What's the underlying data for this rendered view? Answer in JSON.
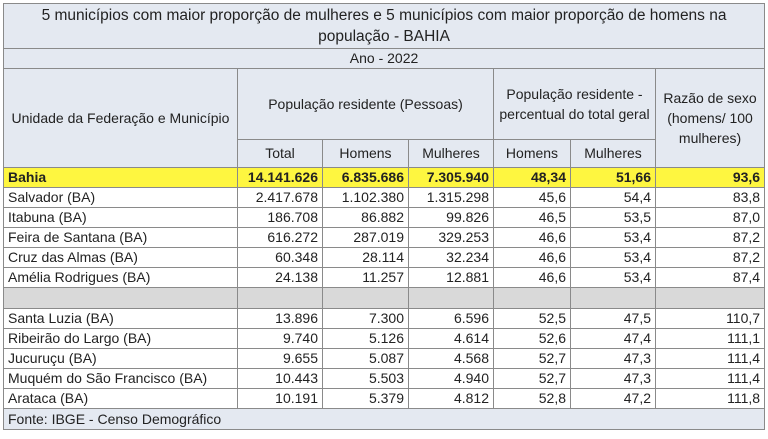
{
  "title": "5 municípios com maior proporção de mulheres e 5 municípios com maior proporção de homens na população - BAHIA",
  "year_label": "Ano - 2022",
  "headers": {
    "unit": "Unidade da Federação e Município",
    "pop_res": "População residente (Pessoas)",
    "pop_pct": "População residente - percentual do total geral",
    "ratio": "Razão de sexo (homens/ 100 mulheres)",
    "total": "Total",
    "homens": "Homens",
    "mulheres": "Mulheres",
    "homens_pct": "Homens",
    "mulheres_pct": "Mulheres"
  },
  "state_row": [
    "Bahia",
    "14.141.626",
    "6.835.686",
    "7.305.940",
    "48,34",
    "51,66",
    "93,6"
  ],
  "group_men": [
    [
      "Salvador (BA)",
      "2.417.678",
      "1.102.380",
      "1.315.298",
      "45,6",
      "54,4",
      "83,8"
    ],
    [
      "Itabuna (BA)",
      "186.708",
      "86.882",
      "99.826",
      "46,5",
      "53,5",
      "87,0"
    ],
    [
      "Feira de Santana (BA)",
      "616.272",
      "287.019",
      "329.253",
      "46,6",
      "53,4",
      "87,2"
    ],
    [
      "Cruz das Almas (BA)",
      "60.348",
      "28.114",
      "32.234",
      "46,6",
      "53,4",
      "87,2"
    ],
    [
      "Amélia Rodrigues (BA)",
      "24.138",
      "11.257",
      "12.881",
      "46,6",
      "53,4",
      "87,4"
    ]
  ],
  "group_women": [
    [
      "Santa Luzia (BA)",
      "13.896",
      "7.300",
      "6.596",
      "52,5",
      "47,5",
      "110,7"
    ],
    [
      "Ribeirão do Largo (BA)",
      "9.740",
      "5.126",
      "4.614",
      "52,6",
      "47,4",
      "111,1"
    ],
    [
      "Jucuruçu (BA)",
      "9.655",
      "5.087",
      "4.568",
      "52,7",
      "47,3",
      "111,4"
    ],
    [
      "Muquém do São Francisco (BA)",
      "10.443",
      "5.503",
      "4.940",
      "52,7",
      "47,3",
      "111,4"
    ],
    [
      "Arataca (BA)",
      "10.191",
      "5.379",
      "4.812",
      "52,8",
      "47,2",
      "111,8"
    ]
  ],
  "source": "Fonte: IBGE - Censo Demográfico",
  "colors": {
    "header_bg": "#e4e9f1",
    "highlight": "#fef640",
    "separator": "#d9d9d9"
  }
}
